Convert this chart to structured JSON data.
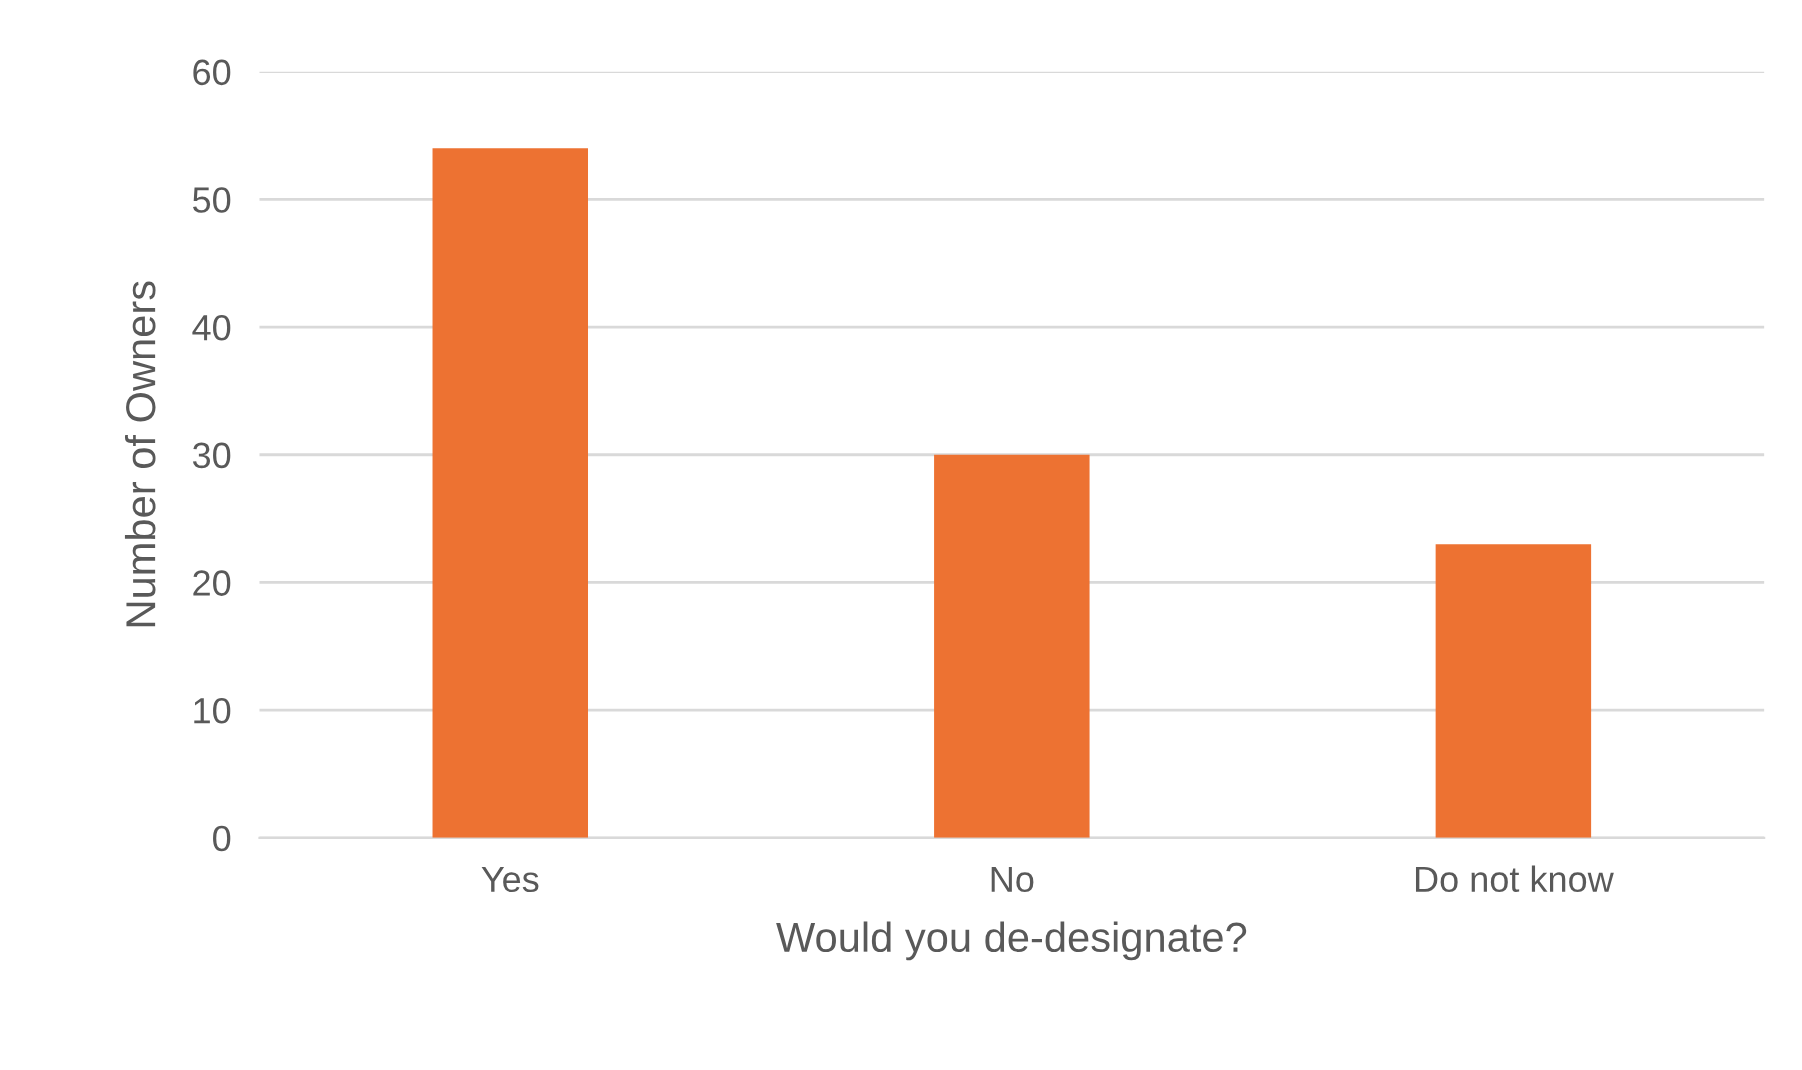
{
  "chart_data": {
    "type": "bar",
    "xlabel": "Would you de-designate?",
    "ylabel": "Number of Owners",
    "categories": [
      "Yes",
      "No",
      "Do not know"
    ],
    "values": [
      54,
      30,
      23
    ],
    "color": "#ed7232",
    "ylim": [
      0,
      60
    ],
    "yticks": [
      0,
      10,
      20,
      30,
      40,
      50,
      60
    ],
    "grid": "y"
  }
}
